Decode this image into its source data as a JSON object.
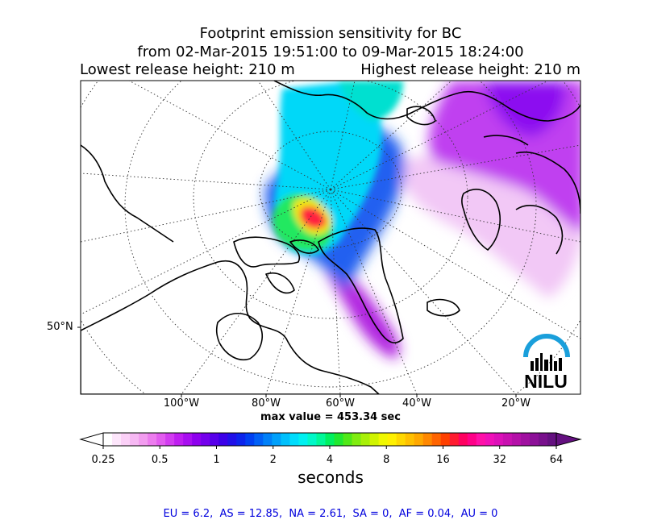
{
  "header": {
    "title": "Footprint emission sensitivity for BC",
    "period": "from 02-Mar-2015 19:51:00 to 09-Mar-2015 18:24:00",
    "lowest_release": "Lowest release height: 210 m",
    "highest_release": "Highest release height: 210 m"
  },
  "chart_data": {
    "type": "heatmap",
    "title": "Footprint emission sensitivity for BC",
    "subtitle": "from 02-Mar-2015 19:51:00 to 09-Mar-2015 18:24:00",
    "x_tick_labels": [
      "100°W",
      "80°W",
      "60°W",
      "40°W",
      "20°W"
    ],
    "y_tick_labels": [
      "50°N"
    ],
    "max_value_text": "max value = 453.34 sec",
    "colorbar": {
      "label": "seconds",
      "tick_labels": [
        "0.25",
        "0.5",
        "1",
        "2",
        "4",
        "8",
        "16",
        "32",
        "64"
      ],
      "tick_values": [
        0.25,
        0.5,
        1,
        2,
        4,
        8,
        16,
        32,
        64
      ],
      "scale": "log2",
      "extend": "both",
      "colors": [
        "#ffffff",
        "#fde6fb",
        "#fbd0f7",
        "#f6b8f3",
        "#f29cef",
        "#ec7cee",
        "#e25cef",
        "#d23cf0",
        "#bf1ef0",
        "#a80ef0",
        "#8e00ee",
        "#7400ec",
        "#5800ea",
        "#3c00e8",
        "#2010e8",
        "#0c24ec",
        "#0040f2",
        "#0060f6",
        "#0080f8",
        "#00a0fa",
        "#00c0fc",
        "#00dcfc",
        "#00f0f0",
        "#00f8c8",
        "#00f898",
        "#00f060",
        "#20e830",
        "#50e818",
        "#80ec10",
        "#a8f008",
        "#d0f400",
        "#f0f800",
        "#fff000",
        "#ffd800",
        "#ffc000",
        "#ffa800",
        "#ff8800",
        "#ff6400",
        "#ff4000",
        "#ff1c30",
        "#ff0060",
        "#ff0088",
        "#ff10a8",
        "#f010b8",
        "#dc10b8",
        "#c810b0",
        "#b410a8",
        "#a010a0",
        "#8c1098",
        "#78108c",
        "#641080"
      ]
    }
  },
  "region_stats": {
    "text": "EU = 6.2,  AS = 12.85,  NA = 2.61,  SA = 0,  AF = 0.04,  AU = 0"
  },
  "logo": {
    "text": "NILU",
    "arc_color": "#1a9fdb",
    "text_color": "#000000"
  }
}
